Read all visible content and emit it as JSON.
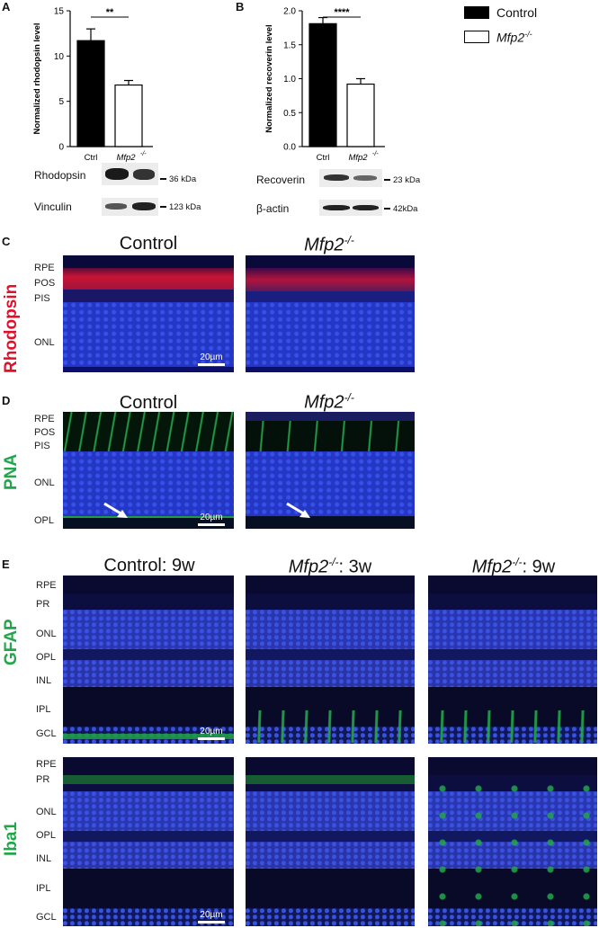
{
  "panels": {
    "A": "A",
    "B": "B",
    "C": "C",
    "D": "D",
    "E": "E"
  },
  "legend": {
    "control": "Control",
    "mfp2": "Mfp2",
    "mfp2_sup": "-/-"
  },
  "chart_data": [
    {
      "type": "bar",
      "panel": "A",
      "categories": [
        "Ctrl",
        "Mfp2-/-"
      ],
      "values": [
        11.7,
        6.8
      ],
      "errors": [
        1.3,
        0.5
      ],
      "ylabel": "Normalized rhodopsin level",
      "ylim": [
        0,
        15
      ],
      "yticks": [
        0,
        5,
        10,
        15
      ],
      "significance": "**",
      "series_colors": [
        "#000000",
        "#ffffff"
      ]
    },
    {
      "type": "bar",
      "panel": "B",
      "categories": [
        "Ctrl",
        "Mfp2-/-"
      ],
      "values": [
        1.81,
        0.92
      ],
      "errors": [
        0.09,
        0.08
      ],
      "ylabel": "Normalized recoverin level",
      "ylim": [
        0,
        2.0
      ],
      "yticks": [
        "0.0",
        "0.5",
        "1.0",
        "1.5",
        "2.0"
      ],
      "significance": "****",
      "series_colors": [
        "#000000",
        "#ffffff"
      ]
    }
  ],
  "blots": {
    "A": [
      {
        "label": "Rhodopsin",
        "kda": "36 kDa"
      },
      {
        "label": "Vinculin",
        "kda": "123 kDa"
      }
    ],
    "B": [
      {
        "label": "Recoverin",
        "kda": "23 kDa"
      },
      {
        "label": "β-actin",
        "kda": "42kDa"
      }
    ]
  },
  "ticklabels": {
    "ctrl": "Ctrl",
    "mfp2": "Mfp2",
    "sup": "-/-"
  },
  "C": {
    "stain": "Rhodopsin",
    "titles": [
      "Control",
      "Mfp2"
    ],
    "sup": "-/-",
    "layers": [
      "RPE",
      "POS",
      "PIS",
      "ONL"
    ],
    "scale": "20µm"
  },
  "D": {
    "stain": "PNA",
    "titles": [
      "Control",
      "Mfp2"
    ],
    "sup": "-/-",
    "layers": [
      "RPE",
      "POS",
      "PIS",
      "ONL",
      "OPL"
    ],
    "scale": "20µm"
  },
  "E": {
    "titles": [
      {
        "main": "Control",
        "sup": "",
        "suffix": ": 9w"
      },
      {
        "main": "Mfp2",
        "sup": "-/-",
        "suffix": ": 3w"
      },
      {
        "main": "Mfp2",
        "sup": "-/-",
        "suffix": ": 9w"
      }
    ],
    "stains": [
      "GFAP",
      "Iba1"
    ],
    "layers": [
      "RPE",
      "PR",
      "ONL",
      "OPL",
      "INL",
      "IPL",
      "GCL"
    ],
    "scale": "20µm"
  },
  "colors": {
    "red_stain": "#e0102a",
    "green_stain": "#22a64a",
    "nuclei": "#2b3fd6"
  }
}
